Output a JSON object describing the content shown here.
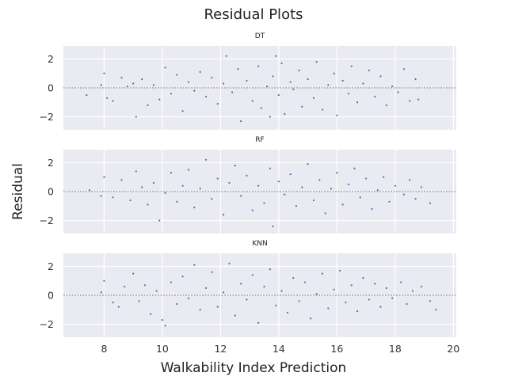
{
  "figure": {
    "suptitle": "Residual Plots",
    "xlabel": "Walkability Index Prediction",
    "ylabel": "Residual"
  },
  "colors": {
    "panel_background": "#EAEAF2",
    "grid": "#FFFFFF",
    "points": "#4C72B0",
    "zero_line": "#000000"
  },
  "chart_data": [
    {
      "type": "scatter",
      "title": "DT",
      "xlim": [
        6.6,
        20.1
      ],
      "ylim": [
        -2.9,
        2.9
      ],
      "xticks": [
        8,
        10,
        12,
        14,
        16,
        18,
        20
      ],
      "yticks": [
        -2,
        0,
        2
      ],
      "grid": true,
      "reference_line_y": 0,
      "points": [
        [
          7.4,
          -0.5
        ],
        [
          7.9,
          0.2
        ],
        [
          8.0,
          1.0
        ],
        [
          8.1,
          -0.7
        ],
        [
          8.3,
          -0.9
        ],
        [
          8.6,
          0.7
        ],
        [
          8.8,
          0.1
        ],
        [
          9.0,
          0.3
        ],
        [
          9.1,
          -2.0
        ],
        [
          9.3,
          0.6
        ],
        [
          9.5,
          -1.2
        ],
        [
          9.7,
          0.2
        ],
        [
          9.9,
          -0.8
        ],
        [
          10.1,
          1.4
        ],
        [
          10.3,
          -0.4
        ],
        [
          10.5,
          0.9
        ],
        [
          10.7,
          -1.6
        ],
        [
          10.9,
          0.4
        ],
        [
          11.1,
          -0.2
        ],
        [
          11.3,
          1.1
        ],
        [
          11.5,
          -0.6
        ],
        [
          11.7,
          0.7
        ],
        [
          11.9,
          -1.1
        ],
        [
          12.1,
          0.3
        ],
        [
          12.2,
          2.2
        ],
        [
          12.4,
          -0.3
        ],
        [
          12.6,
          1.3
        ],
        [
          12.7,
          -2.3
        ],
        [
          12.9,
          0.5
        ],
        [
          13.1,
          -0.9
        ],
        [
          13.3,
          1.5
        ],
        [
          13.4,
          -1.4
        ],
        [
          13.6,
          0.1
        ],
        [
          13.7,
          -2.0
        ],
        [
          13.8,
          0.8
        ],
        [
          13.9,
          2.2
        ],
        [
          14.0,
          -0.5
        ],
        [
          14.1,
          1.7
        ],
        [
          14.2,
          -1.8
        ],
        [
          14.4,
          0.4
        ],
        [
          14.5,
          -0.1
        ],
        [
          14.7,
          1.2
        ],
        [
          14.8,
          -1.3
        ],
        [
          15.0,
          0.6
        ],
        [
          15.2,
          -0.7
        ],
        [
          15.3,
          1.8
        ],
        [
          15.5,
          -1.5
        ],
        [
          15.7,
          0.2
        ],
        [
          15.9,
          1.0
        ],
        [
          16.0,
          -1.9
        ],
        [
          16.2,
          0.5
        ],
        [
          16.4,
          -0.4
        ],
        [
          16.5,
          1.5
        ],
        [
          16.7,
          -1.0
        ],
        [
          16.9,
          0.3
        ],
        [
          17.1,
          1.2
        ],
        [
          17.3,
          -0.6
        ],
        [
          17.5,
          0.8
        ],
        [
          17.7,
          -1.2
        ],
        [
          17.9,
          0.1
        ],
        [
          18.1,
          -0.3
        ],
        [
          18.3,
          1.3
        ],
        [
          18.5,
          -0.9
        ],
        [
          18.7,
          0.6
        ],
        [
          18.8,
          -0.8
        ]
      ]
    },
    {
      "type": "scatter",
      "title": "RF",
      "xlim": [
        6.6,
        20.1
      ],
      "ylim": [
        -2.9,
        2.9
      ],
      "xticks": [
        8,
        10,
        12,
        14,
        16,
        18,
        20
      ],
      "yticks": [
        -2,
        0,
        2
      ],
      "grid": true,
      "reference_line_y": 0,
      "points": [
        [
          7.5,
          0.1
        ],
        [
          7.9,
          -0.3
        ],
        [
          8.0,
          1.0
        ],
        [
          8.3,
          -0.4
        ],
        [
          8.6,
          0.8
        ],
        [
          8.9,
          -0.6
        ],
        [
          9.1,
          1.4
        ],
        [
          9.3,
          0.3
        ],
        [
          9.5,
          -0.9
        ],
        [
          9.7,
          0.6
        ],
        [
          9.9,
          -2.0
        ],
        [
          10.1,
          -0.1
        ],
        [
          10.3,
          1.3
        ],
        [
          10.5,
          -0.7
        ],
        [
          10.7,
          0.4
        ],
        [
          10.9,
          1.5
        ],
        [
          11.1,
          -1.1
        ],
        [
          11.3,
          0.2
        ],
        [
          11.5,
          2.2
        ],
        [
          11.7,
          -0.5
        ],
        [
          11.9,
          0.9
        ],
        [
          12.1,
          -1.6
        ],
        [
          12.3,
          0.6
        ],
        [
          12.5,
          1.8
        ],
        [
          12.7,
          -0.3
        ],
        [
          12.9,
          1.1
        ],
        [
          13.1,
          -1.3
        ],
        [
          13.3,
          0.4
        ],
        [
          13.5,
          -0.8
        ],
        [
          13.7,
          1.6
        ],
        [
          13.8,
          -2.4
        ],
        [
          14.0,
          0.7
        ],
        [
          14.2,
          -0.2
        ],
        [
          14.4,
          1.2
        ],
        [
          14.6,
          -1.0
        ],
        [
          14.8,
          0.3
        ],
        [
          15.0,
          1.9
        ],
        [
          15.2,
          -0.6
        ],
        [
          15.4,
          0.8
        ],
        [
          15.6,
          -1.5
        ],
        [
          15.8,
          0.2
        ],
        [
          16.0,
          1.3
        ],
        [
          16.2,
          -0.9
        ],
        [
          16.4,
          0.5
        ],
        [
          16.6,
          1.6
        ],
        [
          16.8,
          -0.4
        ],
        [
          17.0,
          0.9
        ],
        [
          17.2,
          -1.2
        ],
        [
          17.4,
          0.1
        ],
        [
          17.6,
          1.0
        ],
        [
          17.8,
          -0.7
        ],
        [
          18.0,
          0.4
        ],
        [
          18.3,
          -0.2
        ],
        [
          18.5,
          0.8
        ],
        [
          18.7,
          -0.5
        ],
        [
          18.9,
          0.3
        ],
        [
          19.2,
          -0.8
        ]
      ]
    },
    {
      "type": "scatter",
      "title": "KNN",
      "xlim": [
        6.6,
        20.1
      ],
      "ylim": [
        -2.9,
        2.9
      ],
      "xticks": [
        8,
        10,
        12,
        14,
        16,
        18,
        20
      ],
      "yticks": [
        -2,
        0,
        2
      ],
      "grid": true,
      "reference_line_y": 0,
      "points": [
        [
          7.9,
          0.2
        ],
        [
          8.0,
          1.0
        ],
        [
          8.3,
          -0.5
        ],
        [
          8.5,
          -0.8
        ],
        [
          8.7,
          0.6
        ],
        [
          9.0,
          1.5
        ],
        [
          9.2,
          -0.4
        ],
        [
          9.4,
          0.7
        ],
        [
          9.6,
          -1.3
        ],
        [
          9.8,
          0.3
        ],
        [
          10.0,
          -1.7
        ],
        [
          10.1,
          -2.1
        ],
        [
          10.3,
          0.9
        ],
        [
          10.5,
          -0.6
        ],
        [
          10.7,
          1.3
        ],
        [
          10.9,
          -0.2
        ],
        [
          11.1,
          2.1
        ],
        [
          11.3,
          -1.0
        ],
        [
          11.5,
          0.5
        ],
        [
          11.7,
          1.6
        ],
        [
          11.9,
          -0.8
        ],
        [
          12.1,
          0.2
        ],
        [
          12.3,
          2.2
        ],
        [
          12.5,
          -1.4
        ],
        [
          12.7,
          0.8
        ],
        [
          12.9,
          -0.3
        ],
        [
          13.1,
          1.4
        ],
        [
          13.3,
          -1.9
        ],
        [
          13.5,
          0.6
        ],
        [
          13.7,
          1.8
        ],
        [
          13.9,
          -0.7
        ],
        [
          14.1,
          0.3
        ],
        [
          14.3,
          -1.2
        ],
        [
          14.5,
          1.2
        ],
        [
          14.7,
          -0.4
        ],
        [
          14.9,
          0.9
        ],
        [
          15.1,
          -1.6
        ],
        [
          15.3,
          0.1
        ],
        [
          15.5,
          1.5
        ],
        [
          15.7,
          -0.9
        ],
        [
          15.9,
          0.4
        ],
        [
          16.1,
          1.7
        ],
        [
          16.3,
          -0.5
        ],
        [
          16.5,
          0.7
        ],
        [
          16.7,
          -1.1
        ],
        [
          16.9,
          1.2
        ],
        [
          17.1,
          -0.3
        ],
        [
          17.3,
          0.8
        ],
        [
          17.5,
          -0.8
        ],
        [
          17.7,
          0.5
        ],
        [
          17.9,
          -0.2
        ],
        [
          18.2,
          0.9
        ],
        [
          18.4,
          -0.6
        ],
        [
          18.6,
          0.3
        ],
        [
          18.9,
          0.6
        ],
        [
          19.2,
          -0.4
        ],
        [
          19.4,
          -1.0
        ]
      ]
    }
  ]
}
